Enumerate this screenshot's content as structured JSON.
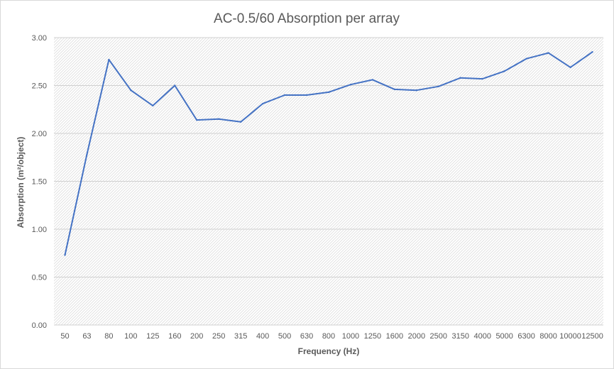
{
  "chart_data": {
    "type": "line",
    "title": "AC-0.5/60 Absorption per array",
    "xlabel": "Frequency (Hz)",
    "ylabel": "Absorption (m²/object)",
    "ylim": [
      0,
      3
    ],
    "yticks": [
      "0.00",
      "0.50",
      "1.00",
      "1.50",
      "2.00",
      "2.50",
      "3.00"
    ],
    "ytick_values": [
      0,
      0.5,
      1,
      1.5,
      2,
      2.5,
      3
    ],
    "grid": true,
    "legend": "none",
    "categories": [
      "50",
      "63",
      "80",
      "100",
      "125",
      "160",
      "200",
      "250",
      "315",
      "400",
      "500",
      "630",
      "800",
      "1000",
      "1250",
      "1600",
      "2000",
      "2500",
      "3150",
      "4000",
      "5000",
      "6300",
      "8000",
      "10000",
      "12500"
    ],
    "series": [
      {
        "color": "#4472c4",
        "values": [
          0.73,
          1.78,
          2.77,
          2.45,
          2.29,
          2.5,
          2.14,
          2.15,
          2.12,
          2.31,
          2.4,
          2.4,
          2.43,
          2.51,
          2.56,
          2.46,
          2.45,
          2.49,
          2.58,
          2.57,
          2.65,
          2.78,
          2.84,
          2.69,
          2.85
        ]
      }
    ]
  }
}
